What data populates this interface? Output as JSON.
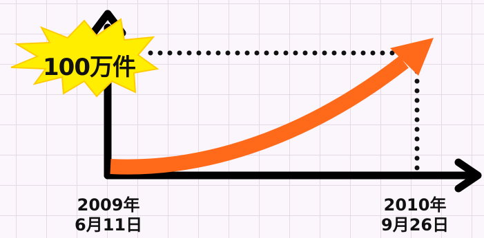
{
  "burst": {
    "label": "100万件",
    "color": "#ffee00",
    "stroke": "#ffcc00"
  },
  "start": {
    "line1": "2009年",
    "line2": "6月11日"
  },
  "end": {
    "line1": "2010年",
    "line2": "9月26日"
  },
  "colors": {
    "axis": "#000000",
    "curve": "#ff6a1a",
    "grid": "#e6d9e6",
    "background": "#fbf6fb"
  }
}
